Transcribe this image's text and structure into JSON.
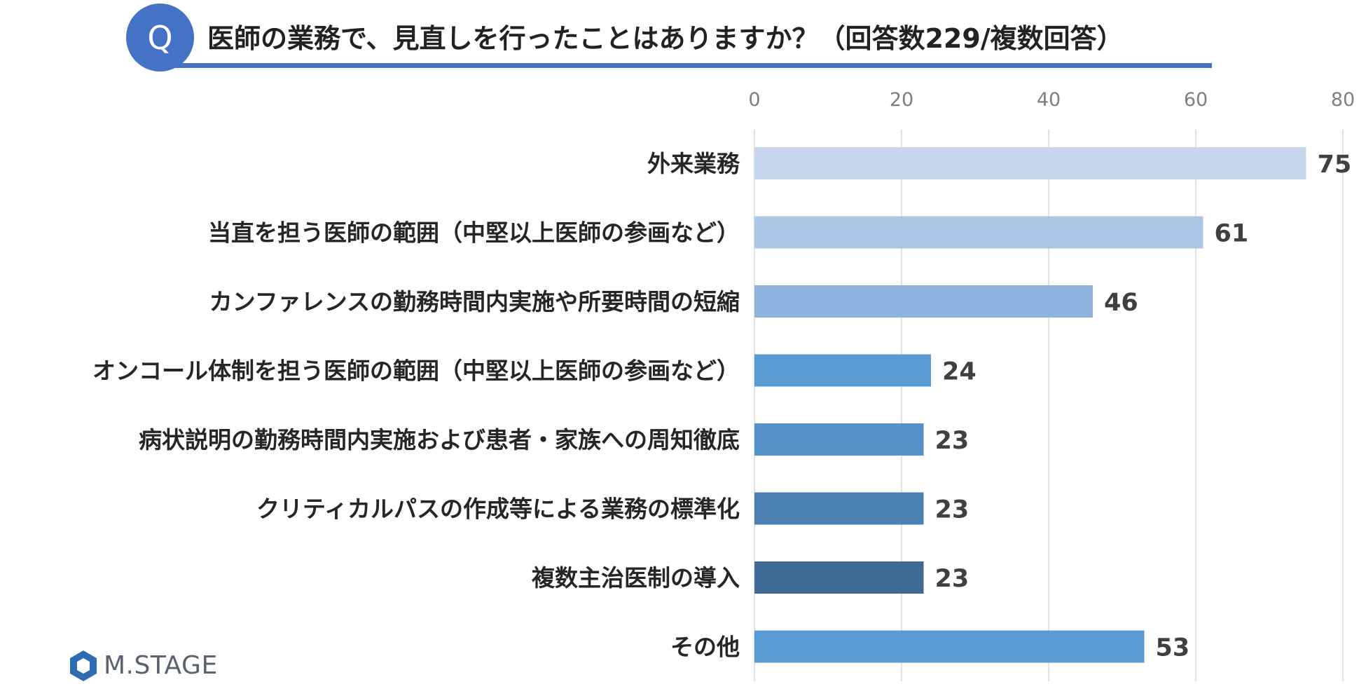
{
  "header": {
    "badge": "Q",
    "title": "医師の業務で、見直しを行ったことはありますか？（回答数229/複数回答）",
    "accent_color": "#4472c4"
  },
  "logo": {
    "text": "M.STAGE",
    "icon": "hexagon-logo-icon",
    "color": "#2e6db4"
  },
  "chart_data": {
    "type": "bar",
    "orientation": "horizontal",
    "title": "",
    "xlabel": "",
    "ylabel": "",
    "xlim": [
      0,
      80
    ],
    "ticks": [
      0,
      20,
      40,
      60,
      80
    ],
    "tick_labels": [
      "0",
      "20",
      "40",
      "60",
      "80"
    ],
    "grid": true,
    "axis_position": "top",
    "categories": [
      "外来業務",
      "当直を担う医師の範囲（中堅以上医師の参画など）",
      "カンファレンスの勤務時間内実施や所要時間の短縮",
      "オンコール体制を担う医師の範囲（中堅以上医師の参画など）",
      "病状説明の勤務時間内実施および患者・家族への周知徹底",
      "クリティカルパスの作成等による業務の標準化",
      "複数主治医制の導入",
      "その他"
    ],
    "values": [
      75,
      61,
      46,
      24,
      23,
      23,
      23,
      53
    ],
    "value_labels": [
      "75",
      "61",
      "46",
      "24",
      "23",
      "23",
      "23",
      "53"
    ],
    "colors": [
      "#c7d7ee",
      "#aec6e6",
      "#8fb3df",
      "#5b9bd5",
      "#5592c8",
      "#4a7fb3",
      "#406b96",
      "#5b9bd5"
    ]
  }
}
